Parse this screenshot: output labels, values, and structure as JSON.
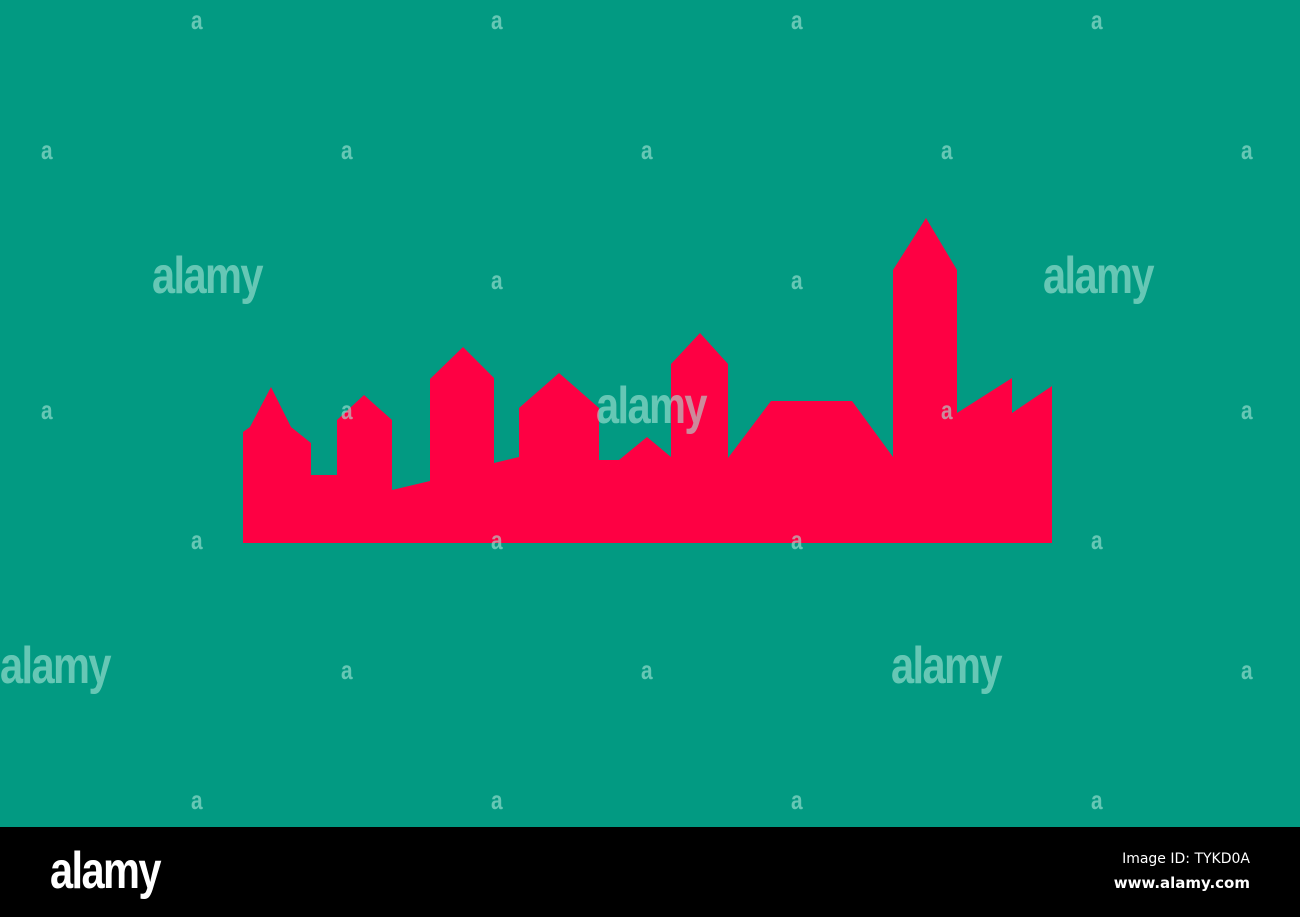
{
  "colors": {
    "background": "#029a82",
    "skyline": "#fe0043",
    "footer": "#000000"
  },
  "watermark": {
    "brand": "alamy",
    "letter": "a"
  },
  "footer": {
    "logo": "alamy",
    "image_id": "Image ID: TYKD0A",
    "website": "www.alamy.com"
  }
}
